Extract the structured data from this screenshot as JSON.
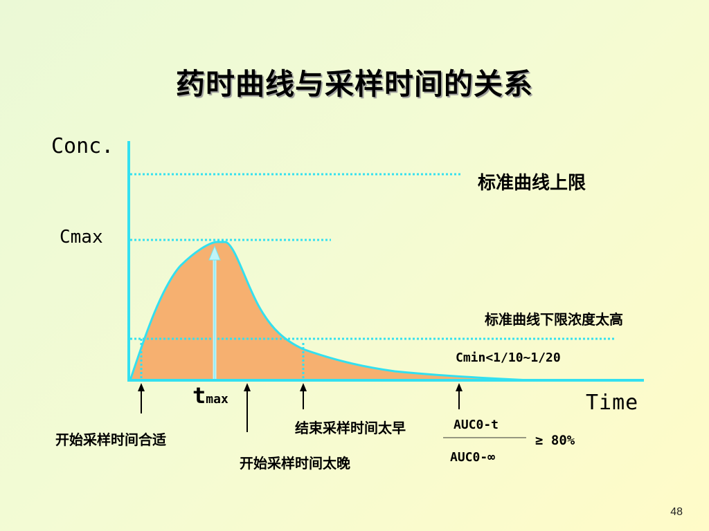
{
  "title": "药时曲线与采样时间的关系",
  "axes": {
    "y_label": "Conc.",
    "x_label": "Time"
  },
  "labels": {
    "cmax": "Cmax",
    "upper_limit": "标准曲线上限",
    "lower_limit_high": "标准曲线下限浓度太高",
    "cmin_rule": "Cmin<1/10~1/20",
    "tmax_main": "t",
    "tmax_sub": "max",
    "start_ok": "开始采样时间合适",
    "start_late": "开始采样时间太晚",
    "end_early": "结束采样时间太早"
  },
  "ratio": {
    "numerator": "AUC0-t",
    "denominator": "AUC0-∞",
    "relation": "≥ 80%"
  },
  "colors": {
    "curve": "#33e0f0",
    "fill": "#f6b070",
    "axis": "#33e0f0",
    "dotted": "#33e0f0"
  },
  "page_number": "48"
}
